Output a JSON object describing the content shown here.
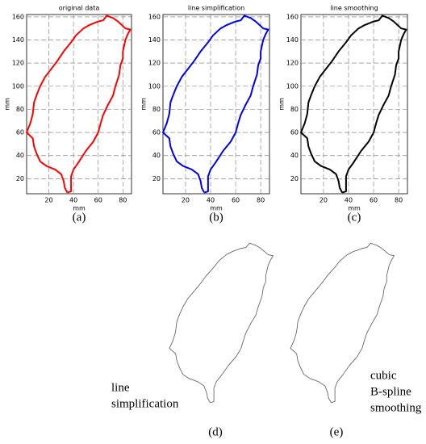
{
  "chart_data": [
    {
      "type": "line",
      "title": "original data",
      "caption": "(a)",
      "xlabel": "mm",
      "ylabel": "mm",
      "x": [
        35,
        33,
        32,
        30,
        25,
        18,
        13,
        10,
        8,
        7,
        4,
        2,
        5,
        7,
        8,
        10,
        13,
        17,
        22,
        27,
        32,
        38,
        42,
        48,
        53,
        60,
        64,
        67,
        72,
        76,
        79,
        82,
        86,
        84,
        82,
        80,
        80,
        78,
        77,
        74,
        72,
        68,
        64,
        62,
        60,
        56,
        50,
        44,
        40,
        38,
        38,
        38,
        35
      ],
      "series": [
        {
          "color": "#ff0000",
          "values": [
            8,
            12,
            18,
            24,
            28,
            31,
            35,
            42,
            48,
            55,
            58,
            60,
            68,
            76,
            86,
            92,
            100,
            108,
            115,
            122,
            130,
            138,
            144,
            150,
            153,
            156,
            157,
            161,
            159,
            156,
            153,
            150,
            149,
            145,
            140,
            130,
            124,
            118,
            110,
            100,
            92,
            84,
            75,
            68,
            60,
            52,
            44,
            34,
            28,
            22,
            15,
            9,
            8
          ]
        }
      ],
      "xlim": [
        2,
        87
      ],
      "ylim": [
        7,
        162
      ],
      "xticks": [
        20,
        40,
        60,
        80
      ],
      "yticks": [
        20,
        40,
        60,
        80,
        100,
        120,
        140,
        160
      ],
      "grid": true
    },
    {
      "type": "line",
      "title": "line simplification",
      "caption": "(b)",
      "xlabel": "mm",
      "ylabel": "mm",
      "x": [
        35,
        33,
        32,
        30,
        25,
        18,
        13,
        10,
        8,
        7,
        4,
        2,
        5,
        7,
        8,
        10,
        13,
        17,
        22,
        27,
        32,
        38,
        42,
        48,
        53,
        60,
        64,
        67,
        72,
        76,
        79,
        82,
        86,
        84,
        82,
        80,
        80,
        78,
        77,
        74,
        72,
        68,
        64,
        62,
        60,
        56,
        50,
        44,
        40,
        38,
        38,
        38,
        35
      ],
      "series": [
        {
          "color": "#0000ee",
          "values": [
            8,
            12,
            18,
            24,
            28,
            31,
            35,
            42,
            48,
            55,
            58,
            60,
            68,
            76,
            86,
            92,
            100,
            108,
            115,
            122,
            130,
            138,
            144,
            150,
            153,
            156,
            157,
            161,
            159,
            156,
            153,
            150,
            149,
            145,
            140,
            130,
            124,
            118,
            110,
            100,
            92,
            84,
            75,
            68,
            60,
            52,
            44,
            34,
            28,
            22,
            15,
            9,
            8
          ]
        }
      ],
      "xlim": [
        2,
        87
      ],
      "ylim": [
        7,
        162
      ],
      "xticks": [
        20,
        40,
        60,
        80
      ],
      "yticks": [
        20,
        40,
        60,
        80,
        100,
        120,
        140,
        160
      ],
      "grid": true
    },
    {
      "type": "line",
      "title": "line smoothing",
      "caption": "(c)",
      "xlabel": "mm",
      "ylabel": "mm",
      "x": [
        35,
        33,
        32,
        30,
        25,
        18,
        13,
        10,
        8,
        7,
        4,
        2,
        5,
        7,
        8,
        10,
        13,
        17,
        22,
        27,
        32,
        38,
        42,
        48,
        53,
        60,
        64,
        67,
        72,
        76,
        79,
        82,
        86,
        84,
        82,
        80,
        80,
        78,
        77,
        74,
        72,
        68,
        64,
        62,
        60,
        56,
        50,
        44,
        40,
        38,
        38,
        38,
        35
      ],
      "series": [
        {
          "color": "#000000",
          "values": [
            8,
            12,
            18,
            24,
            28,
            31,
            35,
            42,
            48,
            55,
            58,
            60,
            68,
            76,
            86,
            92,
            100,
            108,
            115,
            122,
            130,
            138,
            144,
            150,
            153,
            156,
            157,
            161,
            159,
            156,
            153,
            150,
            149,
            145,
            140,
            130,
            124,
            118,
            110,
            100,
            92,
            84,
            75,
            68,
            60,
            52,
            44,
            34,
            28,
            22,
            15,
            9,
            8
          ]
        }
      ],
      "xlim": [
        2,
        87
      ],
      "ylim": [
        7,
        162
      ],
      "xticks": [
        20,
        40,
        60,
        80
      ],
      "yticks": [
        20,
        40,
        60,
        80,
        100,
        120,
        140,
        160
      ],
      "grid": true
    }
  ],
  "panels": [
    {
      "caption": "(d)",
      "annotation": [
        "line",
        "simplification"
      ]
    },
    {
      "caption": "(e)",
      "annotation": [
        "cubic",
        "B-spline",
        "smoothing"
      ]
    }
  ]
}
